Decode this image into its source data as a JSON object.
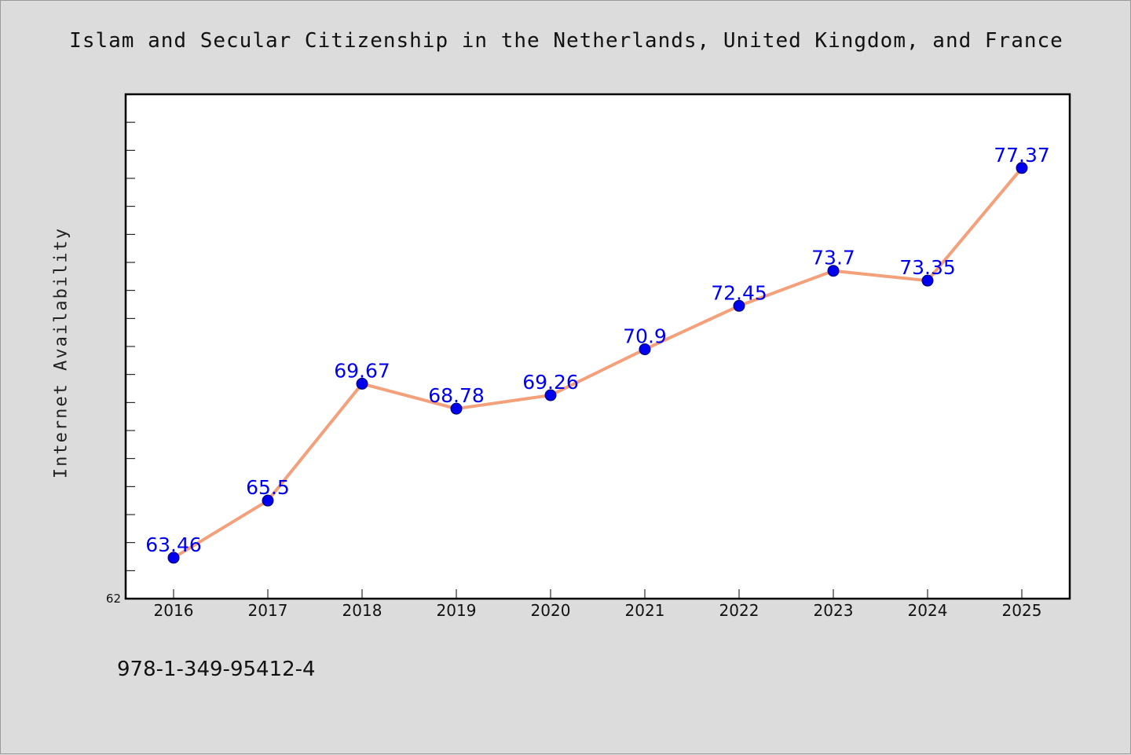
{
  "title": "Islam and Secular Citizenship in the Netherlands, United Kingdom, and France",
  "footer_code": "978-1-349-95412-4",
  "colors": {
    "background": "#dcdcdc",
    "plot_area": "#ffffff",
    "line": "#f4a07a",
    "marker": "#0000ee",
    "data_label": "#0000ee"
  },
  "chart_data": {
    "type": "line",
    "title": "Islam and Secular Citizenship in the Netherlands, United Kingdom, and France",
    "xlabel": "",
    "ylabel": "Internet Availability",
    "categories": [
      "2016",
      "2017",
      "2018",
      "2019",
      "2020",
      "2021",
      "2022",
      "2023",
      "2024",
      "2025"
    ],
    "series": [
      {
        "values": [
          63.46,
          65.5,
          69.67,
          68.78,
          69.26,
          70.9,
          72.45,
          73.7,
          73.35,
          77.37
        ]
      }
    ],
    "data_labels": [
      "63.46",
      "65.5",
      "69.67",
      "68.78",
      "69.26",
      "70.9",
      "72.45",
      "73.7",
      "73.35",
      "77.37"
    ],
    "ylim": [
      62,
      80
    ],
    "y_min_label": "62",
    "y_minor_tick_step": 1,
    "grid": false,
    "legend": "none",
    "marker": "circle"
  }
}
